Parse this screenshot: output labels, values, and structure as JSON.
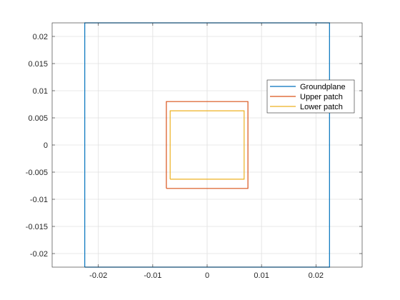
{
  "chart_data": {
    "type": "line",
    "title": "",
    "xlabel": "",
    "ylabel": "",
    "xlim": [
      -0.0285,
      0.0285
    ],
    "ylim": [
      -0.0225,
      0.0225
    ],
    "grid": true,
    "legend_position": "right",
    "xticks": [
      -0.02,
      -0.01,
      0,
      0.01,
      0.02
    ],
    "xtick_labels": [
      "-0.02",
      "-0.01",
      "0",
      "0.01",
      "0.02"
    ],
    "yticks": [
      -0.02,
      -0.015,
      -0.01,
      -0.005,
      0,
      0.005,
      0.01,
      0.015,
      0.02
    ],
    "ytick_labels": [
      "-0.02",
      "-0.015",
      "-0.01",
      "-0.005",
      "0",
      "0.005",
      "0.01",
      "0.015",
      "0.02"
    ],
    "series": [
      {
        "name": "Groundplane",
        "color": "#0072BD",
        "x": [
          -0.0225,
          0.0225,
          0.0225,
          -0.0225,
          -0.0225
        ],
        "y": [
          -0.0225,
          -0.0225,
          0.0225,
          0.0225,
          -0.0225
        ]
      },
      {
        "name": "Upper patch",
        "color": "#D95319",
        "x": [
          -0.0075,
          0.0075,
          0.0075,
          -0.0075,
          -0.0075
        ],
        "y": [
          -0.008,
          -0.008,
          0.008,
          0.008,
          -0.008
        ]
      },
      {
        "name": "Lower patch",
        "color": "#EDB120",
        "x": [
          -0.0068,
          0.0068,
          0.0068,
          -0.0068,
          -0.0068
        ],
        "y": [
          -0.0063,
          -0.0063,
          0.0063,
          0.0063,
          -0.0063
        ]
      }
    ]
  }
}
